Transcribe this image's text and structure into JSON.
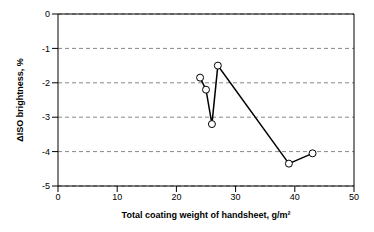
{
  "chart_data": {
    "type": "line",
    "x_label": "Total coating weight of handsheet, g/m²",
    "y_label": "ΔISO brightness, %",
    "x": [
      24,
      25,
      26,
      27,
      39,
      43
    ],
    "values": [
      -1.85,
      -2.2,
      -3.2,
      -1.5,
      -4.35,
      -4.05
    ],
    "color": "#000000",
    "marker": "circle",
    "xlim": [
      0,
      50
    ],
    "xticks": [
      0,
      10,
      20,
      30,
      40,
      50
    ],
    "ylim": [
      -5,
      0
    ],
    "yticks": [
      0,
      -1,
      -2,
      -3,
      -4,
      -5
    ],
    "grid": true
  }
}
